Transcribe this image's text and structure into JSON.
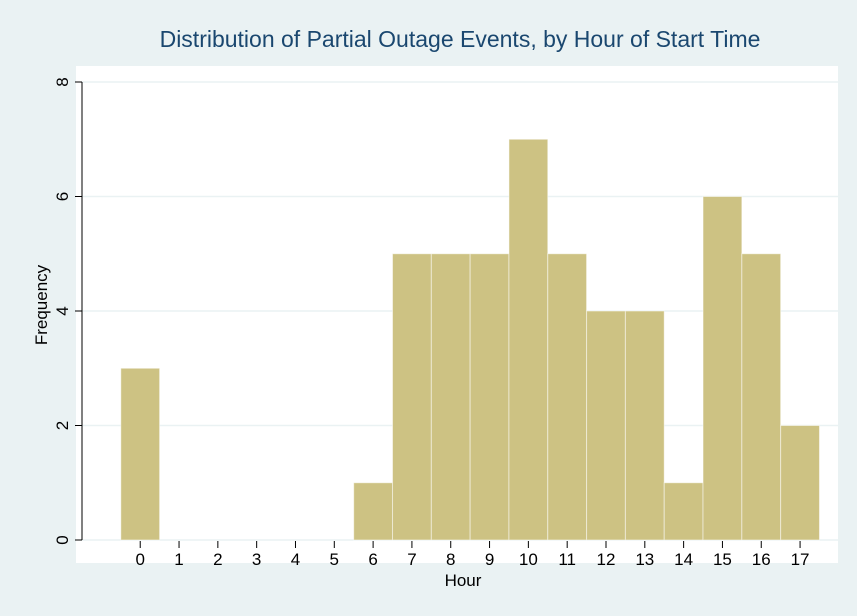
{
  "chart_data": {
    "type": "histogram",
    "title": "Distribution of Partial Outage Events, by Hour of Start Time",
    "x_label": "Hour",
    "y_label": "Frequency",
    "bins": [
      -0.5,
      0.5,
      1.5,
      2.5,
      3.5,
      4.5,
      5.5,
      6.5,
      7.5,
      8.5,
      9.5,
      10.5,
      11.5,
      12.5,
      13.5,
      14.5,
      15.5,
      16.5,
      17.5
    ],
    "values": [
      3,
      0,
      0,
      0,
      0,
      0,
      1,
      5,
      5,
      5,
      7,
      5,
      4,
      4,
      1,
      6,
      5,
      2
    ],
    "color": "#cdc283",
    "xlim": [
      -1.5,
      17.9
    ],
    "ylim": [
      0,
      8
    ],
    "xticks": [
      0,
      1,
      2,
      3,
      4,
      5,
      6,
      7,
      8,
      9,
      10,
      11,
      12,
      13,
      14,
      15,
      16,
      17
    ],
    "yticks": [
      0,
      2,
      4,
      6,
      8
    ],
    "grid": true
  }
}
